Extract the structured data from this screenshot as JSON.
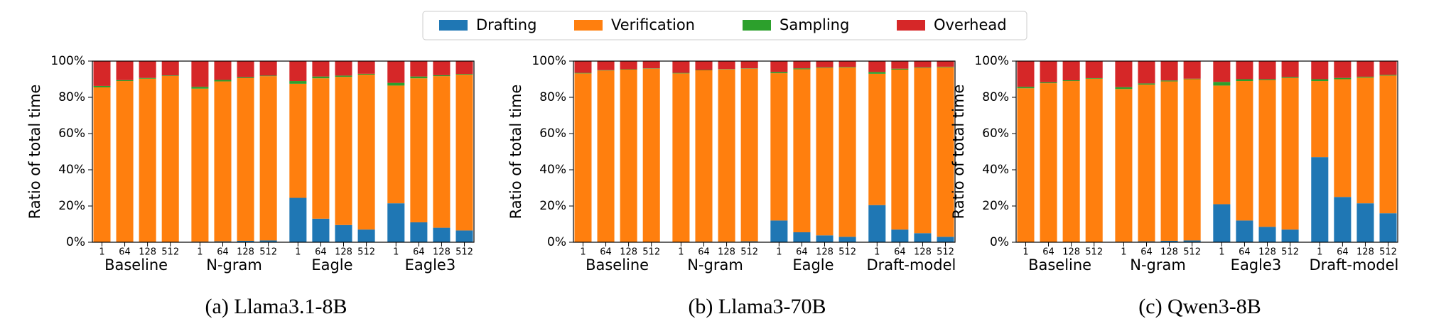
{
  "legend": [
    {
      "name": "Drafting",
      "color": "#1f77b4"
    },
    {
      "name": "Verification",
      "color": "#ff7f0e"
    },
    {
      "name": "Sampling",
      "color": "#2ca02c"
    },
    {
      "name": "Overhead",
      "color": "#d62728"
    }
  ],
  "chart_data": [
    {
      "type": "bar",
      "stacked": true,
      "caption": "(a) Llama3.1-8B",
      "y_label": "Ratio of total time",
      "groups": [
        "Baseline",
        "N-gram",
        "Eagle",
        "Eagle3"
      ],
      "categories": [
        "1",
        "64",
        "128",
        "512",
        "1",
        "64",
        "128",
        "512",
        "1",
        "64",
        "128",
        "512",
        "1",
        "64",
        "128",
        "512"
      ],
      "ylim": [
        0,
        100
      ],
      "yticks": [
        {
          "value": 0,
          "label": "0%"
        },
        {
          "value": 20,
          "label": "20%"
        },
        {
          "value": 40,
          "label": "40%"
        },
        {
          "value": 60,
          "label": "60%"
        },
        {
          "value": 80,
          "label": "80%"
        },
        {
          "value": 100,
          "label": "100%"
        }
      ],
      "series": [
        {
          "values": [
            0,
            0,
            0,
            0,
            0.3,
            0.5,
            0.8,
            1,
            24.5,
            13,
            9.5,
            7,
            21.5,
            11,
            8,
            6.5
          ]
        },
        {
          "values": [
            85.5,
            89,
            90.3,
            91.8,
            84.5,
            88.3,
            89.8,
            90.7,
            63,
            77.5,
            81.8,
            85.5,
            65,
            79.5,
            83.7,
            86
          ]
        },
        {
          "values": [
            0.8,
            0.5,
            0.4,
            0.3,
            1,
            0.8,
            0.5,
            0.3,
            1.5,
            1,
            0.7,
            0.5,
            1.5,
            1,
            0.5,
            0.4
          ]
        },
        {
          "values": [
            13.7,
            10.5,
            9.3,
            7.9,
            14.2,
            10.4,
            8.9,
            8,
            11,
            8.5,
            8,
            7,
            12,
            8.5,
            7.8,
            7.1
          ]
        }
      ]
    },
    {
      "type": "bar",
      "stacked": true,
      "caption": "(b) Llama3-70B",
      "y_label": "Ratio of total time",
      "groups": [
        "Baseline",
        "N-gram",
        "Eagle",
        "Draft-model"
      ],
      "categories": [
        "1",
        "64",
        "128",
        "512",
        "1",
        "64",
        "128",
        "512",
        "1",
        "64",
        "128",
        "512",
        "1",
        "64",
        "128",
        "512"
      ],
      "ylim": [
        0,
        100
      ],
      "yticks": [
        {
          "value": 0,
          "label": "0%"
        },
        {
          "value": 20,
          "label": "20%"
        },
        {
          "value": 40,
          "label": "40%"
        },
        {
          "value": 60,
          "label": "60%"
        },
        {
          "value": 80,
          "label": "80%"
        },
        {
          "value": 100,
          "label": "100%"
        }
      ],
      "series": [
        {
          "values": [
            0,
            0,
            0,
            0,
            0.2,
            0.3,
            0.3,
            0.5,
            12,
            5.5,
            3.8,
            3,
            20.5,
            7,
            5,
            3
          ]
        },
        {
          "values": [
            93.2,
            94.8,
            95.3,
            95.8,
            93,
            94.6,
            95.1,
            95.3,
            81.3,
            90,
            92.5,
            93.5,
            72.5,
            88.3,
            91.3,
            93.6
          ]
        },
        {
          "values": [
            0.3,
            0.2,
            0.2,
            0.2,
            0.3,
            0.2,
            0.2,
            0.2,
            0.7,
            0.5,
            0.3,
            0.3,
            1,
            0.5,
            0.3,
            0.3
          ]
        },
        {
          "values": [
            6.5,
            5,
            4.5,
            4,
            6.5,
            4.9,
            4.4,
            4,
            6,
            4,
            3.4,
            3.2,
            6,
            4.2,
            3.4,
            3.1
          ]
        }
      ]
    },
    {
      "type": "bar",
      "stacked": true,
      "caption": "(c) Qwen3-8B",
      "y_label": "Ratio of total time",
      "groups": [
        "Baseline",
        "N-gram",
        "Eagle3",
        "Draft-model"
      ],
      "categories": [
        "1",
        "64",
        "128",
        "512",
        "1",
        "64",
        "128",
        "512",
        "1",
        "64",
        "128",
        "512",
        "1",
        "64",
        "128",
        "512"
      ],
      "ylim": [
        0,
        100
      ],
      "yticks": [
        {
          "value": 0,
          "label": "0%"
        },
        {
          "value": 20,
          "label": "20%"
        },
        {
          "value": 40,
          "label": "40%"
        },
        {
          "value": 60,
          "label": "60%"
        },
        {
          "value": 80,
          "label": "80%"
        },
        {
          "value": 100,
          "label": "100%"
        }
      ],
      "series": [
        {
          "values": [
            0,
            0,
            0,
            0,
            0.3,
            0.5,
            0.8,
            1,
            21,
            12,
            8.5,
            7,
            47,
            25,
            21.5,
            16
          ]
        },
        {
          "values": [
            85,
            87.8,
            89,
            90.3,
            84.3,
            86.5,
            88,
            89,
            65.5,
            77,
            81,
            83.7,
            42,
            65,
            69.4,
            76
          ]
        },
        {
          "values": [
            0.8,
            0.5,
            0.4,
            0.3,
            1,
            0.7,
            0.5,
            0.3,
            2,
            1,
            0.5,
            0.5,
            1,
            0.7,
            0.5,
            0.4
          ]
        },
        {
          "values": [
            14.2,
            11.7,
            10.6,
            9.4,
            14.4,
            12.3,
            10.7,
            9.7,
            11.5,
            10,
            10,
            8.8,
            10,
            9.3,
            8.6,
            7.6
          ]
        }
      ]
    }
  ]
}
